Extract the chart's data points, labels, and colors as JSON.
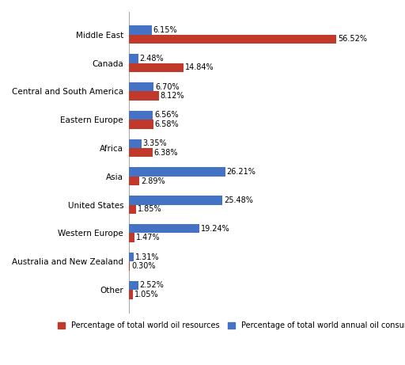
{
  "categories": [
    "Middle East",
    "Canada",
    "Central and South America",
    "Eastern Europe",
    "Africa",
    "Asia",
    "United States",
    "Western Europe",
    "Australia and New Zealand",
    "Other"
  ],
  "oil_resources": [
    56.52,
    14.84,
    8.12,
    6.58,
    6.38,
    2.89,
    1.85,
    1.47,
    0.3,
    1.05
  ],
  "oil_consumption": [
    6.15,
    2.48,
    6.7,
    6.56,
    3.35,
    26.21,
    25.48,
    19.24,
    1.31,
    2.52
  ],
  "resource_color": "#C0392B",
  "consumption_color": "#4472C4",
  "legend_resource": "Percentage of total world oil resources",
  "legend_consumption": "Percentage of total world annual oil consumption",
  "bar_height": 0.32,
  "xlim": [
    0,
    63
  ],
  "background_color": "#FFFFFF",
  "label_fontsize": 7.0,
  "tick_fontsize": 7.5,
  "legend_fontsize": 7.0
}
